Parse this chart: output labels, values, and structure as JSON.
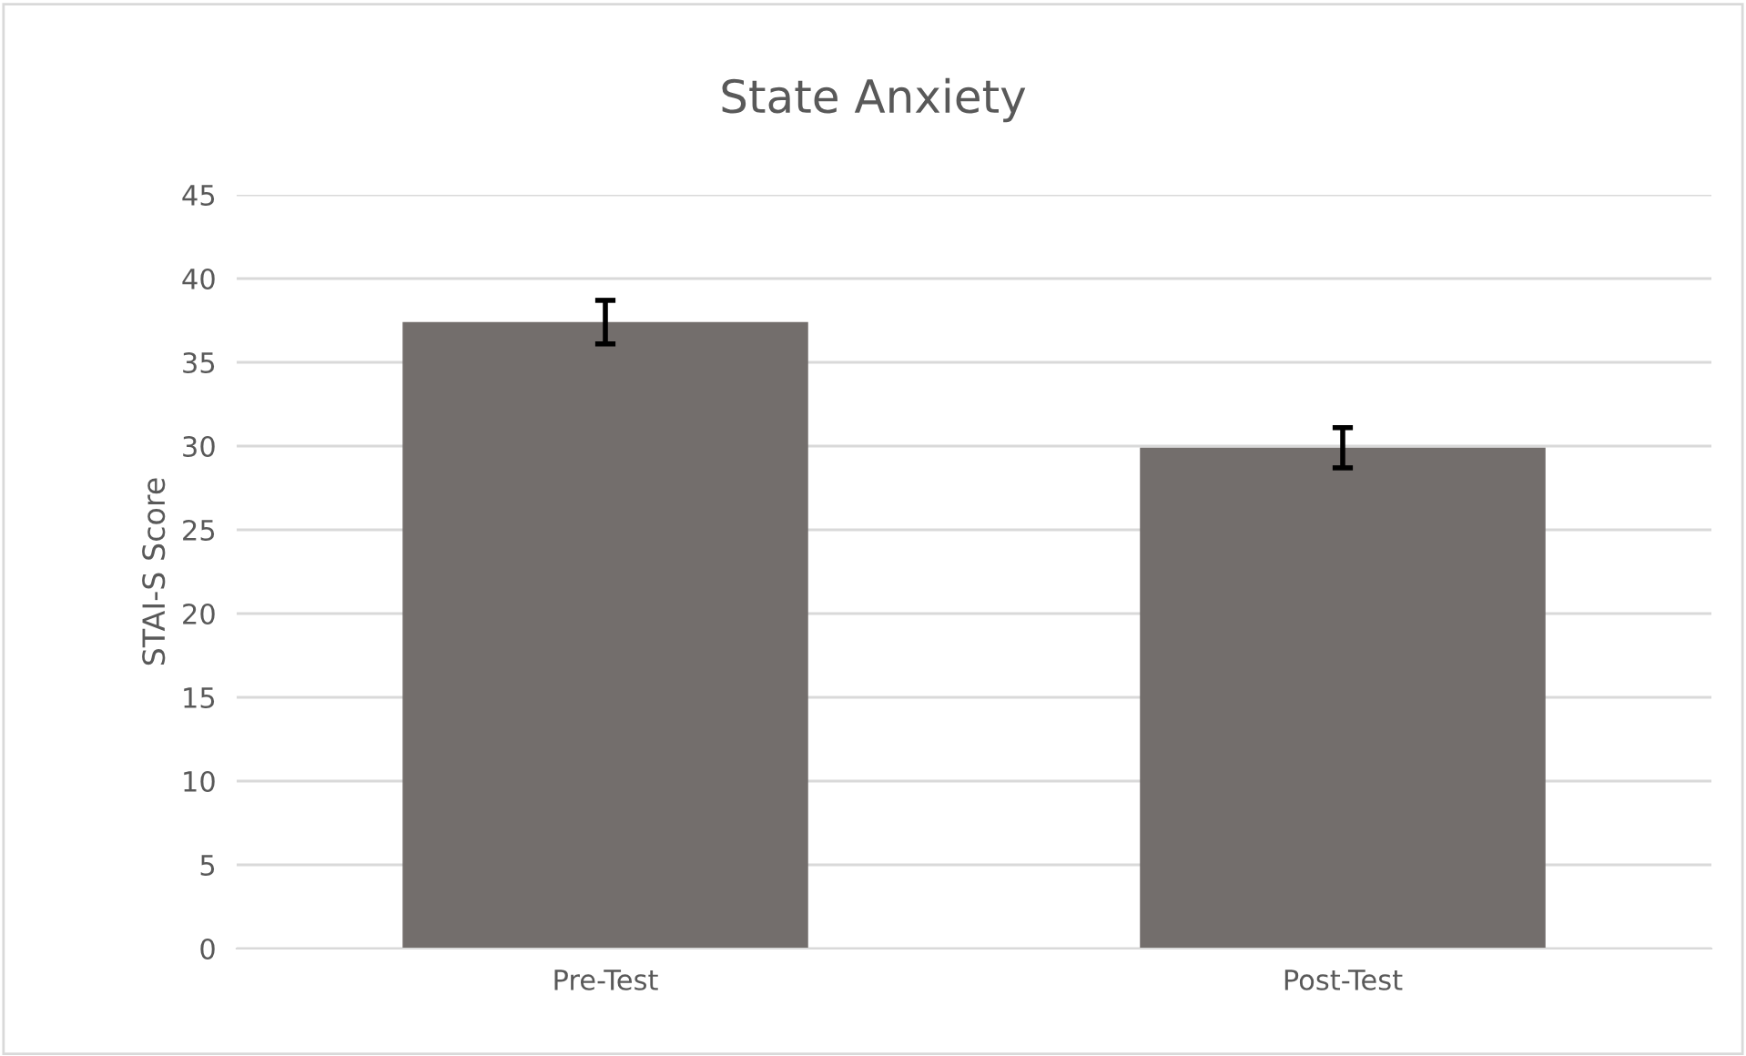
{
  "chart_data": {
    "type": "bar",
    "title": "State Anxiety",
    "ylabel": "STAI-S Score",
    "categories": [
      "Pre-Test",
      "Post-Test"
    ],
    "values": [
      37.4,
      29.9
    ],
    "errors": [
      1.3,
      1.2
    ],
    "color": "#736e6c",
    "ylim": [
      0,
      45
    ],
    "yticks": [
      0,
      5,
      10,
      15,
      20,
      25,
      30,
      35,
      40,
      45
    ],
    "grid": "y"
  }
}
